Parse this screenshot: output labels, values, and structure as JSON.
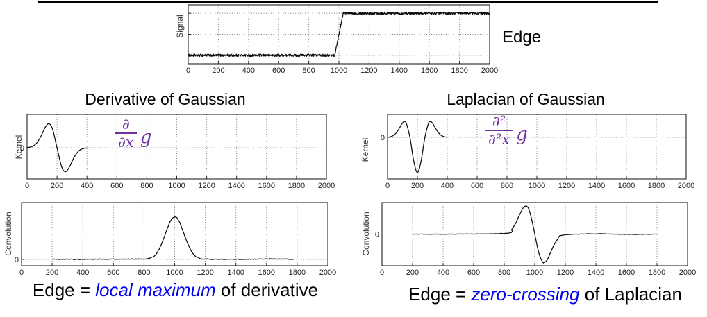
{
  "header": {
    "edge_label": "Edge"
  },
  "colors": {
    "accent_purple": "#7030A0",
    "accent_blue": "#0000EE",
    "curve": "#0a0a0a",
    "grid": "#808080",
    "axis": "#222222",
    "top_rule": "#000000"
  },
  "sections": {
    "left": {
      "title": "Derivative of Gaussian",
      "formula": {
        "numerator": "∂",
        "denominator": "∂x",
        "suffix": "g"
      },
      "caption": {
        "prefix": "Edge = ",
        "highlight": "local maximum",
        "suffix": " of derivative"
      }
    },
    "right": {
      "title": "Laplacian of Gaussian",
      "formula": {
        "numerator": "∂²",
        "denominator": "∂²x",
        "suffix": "g"
      },
      "caption": {
        "prefix": "Edge = ",
        "highlight": "zero-crossing",
        "suffix": " of Laplacian"
      }
    }
  },
  "chart_data": [
    {
      "key": "signal",
      "type": "line",
      "ylabel": "Signal",
      "xlim": [
        0,
        2000
      ],
      "xticks": [
        0,
        200,
        400,
        600,
        800,
        1000,
        1200,
        1400,
        1600,
        1800,
        2000
      ],
      "xtick_labels": [
        "0",
        "200",
        "400",
        "600",
        "800",
        "1000",
        "1200",
        "1400",
        "1600",
        "1800",
        "2000"
      ],
      "ylim": [
        -0.2,
        1.2
      ],
      "ygrid": [
        0,
        0.5,
        1
      ],
      "ytick_labels": [],
      "series": [
        {
          "name": "noisy step signal",
          "interp": "linear",
          "noise": 0.028,
          "sample_step": 2,
          "points": [
            [
              0,
              0
            ],
            [
              972,
              0
            ],
            [
              1028,
              1
            ],
            [
              2000,
              1
            ]
          ]
        }
      ]
    },
    {
      "key": "kernel_dog",
      "type": "line",
      "ylabel": "Kernel",
      "xlim": [
        0,
        2000
      ],
      "xticks": [
        0,
        200,
        400,
        600,
        800,
        1000,
        1200,
        1400,
        1600,
        1800,
        2000
      ],
      "xtick_labels": [
        "0",
        "200",
        "400",
        "600",
        "800",
        "1000",
        "1200",
        "1400",
        "1600",
        "1800",
        "2000"
      ],
      "ylim": [
        -1,
        1.066
      ],
      "ygrid": [
        0
      ],
      "ytick_labels": [
        {
          "v": 0,
          "t": "0"
        }
      ],
      "series": [
        {
          "name": "derivative of gaussian kernel",
          "interp": "spline",
          "noise": 0,
          "sample_step": 6,
          "points": [
            [
              0,
              0.008
            ],
            [
              30,
              0.033
            ],
            [
              60,
              0.127
            ],
            [
              90,
              0.344
            ],
            [
              120,
              0.641
            ],
            [
              145,
              0.77
            ],
            [
              170,
              0.597
            ],
            [
              200,
              0
            ],
            [
              230,
              -0.597
            ],
            [
              255,
              -0.77
            ],
            [
              280,
              -0.641
            ],
            [
              310,
              -0.344
            ],
            [
              340,
              -0.127
            ],
            [
              370,
              -0.033
            ],
            [
              405,
              -0.008
            ]
          ]
        }
      ]
    },
    {
      "key": "kernel_log",
      "type": "line",
      "ylabel": "Kernel",
      "xlim": [
        0,
        2000
      ],
      "xticks": [
        0,
        200,
        400,
        600,
        800,
        1000,
        1200,
        1400,
        1600,
        1800,
        2000
      ],
      "xtick_labels": [
        "0",
        "200",
        "400",
        "600",
        "800",
        "1000",
        "1200",
        "1400",
        "1600",
        "1800",
        "2000"
      ],
      "ylim": [
        -1,
        0.55
      ],
      "ygrid": [
        0
      ],
      "ytick_labels": [
        {
          "v": 0,
          "t": "0"
        }
      ],
      "series": [
        {
          "name": "laplacian of gaussian kernel",
          "interp": "spline",
          "noise": 0,
          "sample_step": 6,
          "points": [
            [
              0,
              0.004
            ],
            [
              25,
              0.021
            ],
            [
              50,
              0.075
            ],
            [
              75,
              0.196
            ],
            [
              100,
              0.345
            ],
            [
              113,
              0.379
            ],
            [
              125,
              0.345
            ],
            [
              150,
              0
            ],
            [
              175,
              -0.563
            ],
            [
              200,
              -0.85
            ],
            [
              225,
              -0.563
            ],
            [
              250,
              0
            ],
            [
              275,
              0.345
            ],
            [
              287,
              0.379
            ],
            [
              300,
              0.345
            ],
            [
              325,
              0.196
            ],
            [
              350,
              0.075
            ],
            [
              375,
              0.021
            ],
            [
              400,
              0.004
            ]
          ]
        }
      ]
    },
    {
      "key": "conv_dog",
      "type": "line",
      "ylabel": "Convolution",
      "xlim": [
        0,
        2000
      ],
      "xticks": [
        0,
        200,
        400,
        600,
        800,
        1000,
        1200,
        1400,
        1600,
        1800,
        2000
      ],
      "xtick_labels": [
        "0",
        "200",
        "400",
        "600",
        "800",
        "1000",
        "1200",
        "1400",
        "1600",
        "1800",
        "2000"
      ],
      "ylim": [
        -0.11,
        1.0
      ],
      "ygrid": [
        0
      ],
      "ytick_labels": [
        {
          "v": 0,
          "t": "0"
        }
      ],
      "series": [
        {
          "name": "signal convolved with derivative of gaussian",
          "interp": "spline",
          "noise": 0.006,
          "sample_step": 8,
          "points": [
            [
              200,
              0.003
            ],
            [
              400,
              0.002
            ],
            [
              600,
              0.006
            ],
            [
              800,
              0.01
            ],
            [
              850,
              0.035
            ],
            [
              875,
              0.085
            ],
            [
              900,
              0.19
            ],
            [
              925,
              0.345
            ],
            [
              950,
              0.53
            ],
            [
              975,
              0.69
            ],
            [
              1000,
              0.75
            ],
            [
              1025,
              0.69
            ],
            [
              1050,
              0.53
            ],
            [
              1075,
              0.345
            ],
            [
              1100,
              0.19
            ],
            [
              1125,
              0.085
            ],
            [
              1150,
              0.035
            ],
            [
              1200,
              0.008
            ],
            [
              1400,
              0.002
            ],
            [
              1600,
              0.006
            ],
            [
              1780,
              0.003
            ]
          ]
        }
      ]
    },
    {
      "key": "conv_log",
      "type": "line",
      "ylabel": "Convolution",
      "xlim": [
        0,
        2000
      ],
      "xticks": [
        0,
        200,
        400,
        600,
        800,
        1000,
        1200,
        1400,
        1600,
        1800,
        2000
      ],
      "xtick_labels": [
        "0",
        "200",
        "400",
        "600",
        "800",
        "1000",
        "1200",
        "1400",
        "1600",
        "1800",
        "2000"
      ],
      "ylim": [
        -1.05,
        1.05
      ],
      "ygrid": [
        0
      ],
      "ytick_labels": [
        {
          "v": 0,
          "t": "0"
        }
      ],
      "series": [
        {
          "name": "signal convolved with laplacian of gaussian",
          "interp": "spline",
          "noise": 0.006,
          "sample_step": 8,
          "points": [
            [
              200,
              0
            ],
            [
              500,
              0
            ],
            [
              820,
              0.03
            ],
            [
              850,
              0.17
            ],
            [
              875,
              0.36
            ],
            [
              900,
              0.64
            ],
            [
              925,
              0.88
            ],
            [
              940,
              0.93
            ],
            [
              955,
              0.89
            ],
            [
              975,
              0.59
            ],
            [
              1000,
              0
            ],
            [
              1025,
              -0.6
            ],
            [
              1050,
              -0.92
            ],
            [
              1062,
              -0.95
            ],
            [
              1080,
              -0.87
            ],
            [
              1100,
              -0.65
            ],
            [
              1125,
              -0.37
            ],
            [
              1150,
              -0.17
            ],
            [
              1185,
              -0.03
            ],
            [
              1400,
              0.01
            ],
            [
              1600,
              -0.01
            ],
            [
              1800,
              0
            ]
          ]
        }
      ]
    }
  ]
}
